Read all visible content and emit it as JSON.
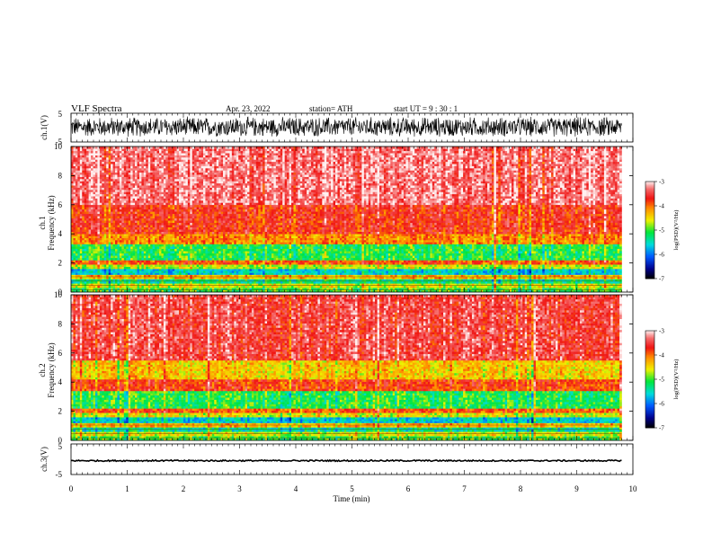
{
  "header": {
    "title": "VLF  Spectra",
    "date": "Apr. 23, 2022",
    "station": "station= ATH",
    "start": "start  UT  =    9  : 30 : 1"
  },
  "chart_data": [
    {
      "type": "line",
      "panel": "ch1-waveform",
      "ylabel": "ch.1(V)",
      "ylim": [
        -5,
        5
      ],
      "yticks": [
        "5",
        "-5"
      ],
      "xlim": [
        0,
        10
      ],
      "data_x_end": 9.8,
      "amplitude_range": [
        -3.5,
        4.0
      ]
    },
    {
      "type": "heatmap",
      "panel": "ch1-spectrogram",
      "ylabel": "ch.1\nFrequency  (kHz)",
      "ylim": [
        0,
        10
      ],
      "yticks": [
        "0",
        "2",
        "4",
        "6",
        "8",
        "10"
      ],
      "xlim": [
        0,
        10
      ],
      "data_x_end": 9.8,
      "colorbar": {
        "label": "log(PSD)(V²/Hz)",
        "range": [
          -7,
          -3
        ],
        "ticks": [
          "-3",
          "-4",
          "-5",
          "-6",
          "-7"
        ]
      },
      "bands_khz_level": [
        [
          0.0,
          0.3,
          -5.0
        ],
        [
          0.3,
          0.6,
          -4.6
        ],
        [
          0.6,
          0.9,
          -5.3
        ],
        [
          0.9,
          1.2,
          -4.3
        ],
        [
          1.2,
          1.6,
          -5.6
        ],
        [
          1.6,
          1.9,
          -4.7
        ],
        [
          1.9,
          2.2,
          -3.9
        ],
        [
          2.2,
          3.3,
          -5.1
        ],
        [
          3.3,
          4.0,
          -4.1
        ],
        [
          4.0,
          6.0,
          -3.7
        ],
        [
          6.0,
          10.0,
          -3.3
        ]
      ]
    },
    {
      "type": "heatmap",
      "panel": "ch2-spectrogram",
      "ylabel": "ch.2\nFrequency  (kHz)",
      "ylim": [
        0,
        10
      ],
      "yticks": [
        "0",
        "2",
        "4",
        "6",
        "8",
        "10"
      ],
      "xlim": [
        0,
        10
      ],
      "data_x_end": 9.8,
      "colorbar": {
        "label": "log(PSD)(V²/Hz)",
        "range": [
          -7,
          -3
        ],
        "ticks": [
          "-3",
          "-4",
          "-5",
          "-6",
          "-7"
        ]
      },
      "bands_khz_level": [
        [
          0.0,
          0.3,
          -5.0
        ],
        [
          0.3,
          0.6,
          -4.6
        ],
        [
          0.6,
          0.9,
          -5.4
        ],
        [
          0.9,
          1.2,
          -4.3
        ],
        [
          1.2,
          1.6,
          -5.6
        ],
        [
          1.6,
          1.9,
          -4.6
        ],
        [
          1.9,
          2.2,
          -3.9
        ],
        [
          2.2,
          3.4,
          -5.1
        ],
        [
          3.4,
          4.2,
          -3.8
        ],
        [
          4.2,
          5.5,
          -4.4
        ],
        [
          5.5,
          10.0,
          -3.5
        ]
      ]
    },
    {
      "type": "line",
      "panel": "ch3-waveform",
      "ylabel": "ch.3(V)",
      "ylim": [
        -5,
        5
      ],
      "yticks": [
        "5",
        "-5"
      ],
      "xlim": [
        0,
        10
      ],
      "data_x_end": 9.8,
      "amplitude_range": [
        -0.7,
        0.2
      ]
    }
  ],
  "xaxis": {
    "label": "Time  (min)",
    "ticks": [
      "0",
      "1",
      "2",
      "3",
      "4",
      "5",
      "6",
      "7",
      "8",
      "9",
      "10"
    ]
  }
}
